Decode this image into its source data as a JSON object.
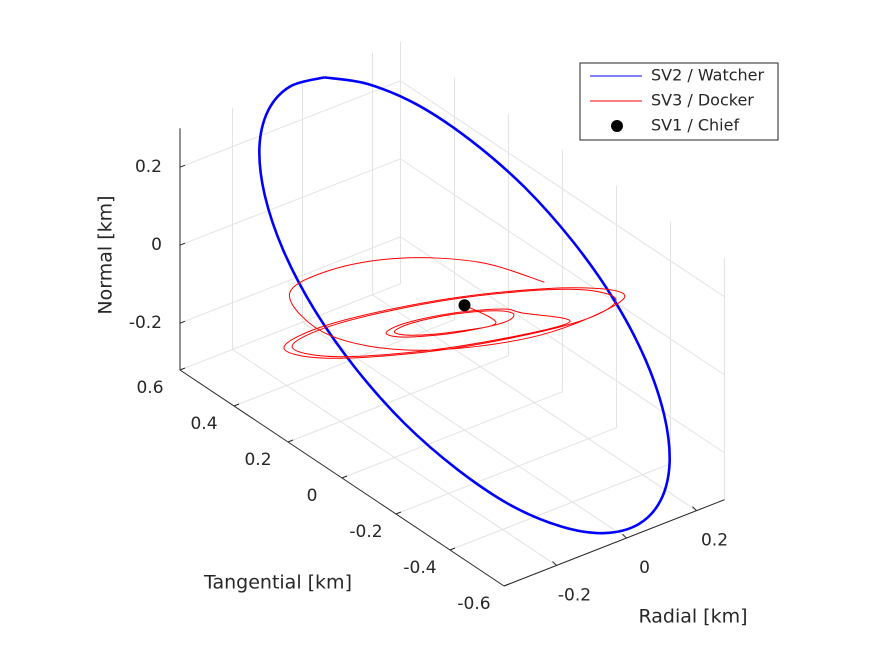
{
  "chart_data": {
    "type": "line3d",
    "xlabel": "Radial [km]",
    "ylabel": "Tangential [km]",
    "zlabel": "Normal [km]",
    "xlim": [
      -0.35,
      0.28
    ],
    "ylim": [
      -0.6,
      0.6
    ],
    "zlim": [
      -0.32,
      0.3
    ],
    "xticks": [
      -0.2,
      0,
      0.2
    ],
    "yticks": [
      -0.6,
      -0.4,
      -0.2,
      0,
      0.2,
      0.4,
      0.6
    ],
    "zticks": [
      -0.2,
      0,
      0.2
    ],
    "grid": true,
    "legend_location": "northeast",
    "series": [
      {
        "name": "SV2 / Watcher",
        "color": "#0000ff",
        "mode": "line",
        "x": [
          0.047,
          0.118,
          0.183,
          0.233,
          0.269,
          0.285,
          0.283,
          0.261,
          0.221,
          0.167,
          0.101,
          0.028,
          -0.047,
          -0.118,
          -0.183,
          -0.233,
          -0.269,
          -0.285,
          -0.283,
          -0.261,
          -0.221,
          -0.167,
          -0.101,
          -0.028,
          0.047
        ],
        "y": [
          0.58,
          0.511,
          0.408,
          0.277,
          0.127,
          -0.032,
          -0.188,
          -0.332,
          -0.453,
          -0.543,
          -0.596,
          -0.609,
          -0.58,
          -0.511,
          -0.408,
          -0.277,
          -0.127,
          0.032,
          0.188,
          0.332,
          0.453,
          0.543,
          0.596,
          0.609,
          0.58
        ],
        "z": [
          0.3,
          0.29,
          0.26,
          0.212,
          0.15,
          0.078,
          0,
          -0.078,
          -0.15,
          -0.212,
          -0.26,
          -0.29,
          -0.3,
          -0.29,
          -0.26,
          -0.212,
          -0.15,
          -0.078,
          0,
          0.078,
          0.15,
          0.212,
          0.26,
          0.29,
          0.3
        ]
      },
      {
        "name": "SV3 / Docker",
        "color": "#ff0000",
        "mode": "line",
        "x": [
          0.206,
          0.143,
          0.01,
          -0.149,
          -0.288,
          -0.324,
          -0.203,
          0.054,
          0.22,
          0.194,
          0.038,
          -0.159,
          -0.28,
          -0.254,
          -0.098,
          0.099,
          0.208,
          0.183,
          0.035,
          -0.153,
          -0.268,
          -0.243,
          -0.095,
          0.093,
          0.07,
          0.06,
          -0.003,
          -0.082,
          -0.13,
          -0.12,
          -0.057,
          0.022,
          0.058,
          0.048,
          -0.006,
          -0.075,
          -0.118,
          -0.108,
          -0.054,
          0.015,
          0
        ],
        "y": [
          -0.029,
          0.13,
          0.254,
          0.307,
          0.275,
          0.08,
          -0.096,
          -0.208,
          -0.306,
          -0.154,
          0.088,
          0.278,
          0.306,
          0.154,
          -0.088,
          -0.278,
          -0.291,
          -0.146,
          0.084,
          0.264,
          0.291,
          0.146,
          -0.084,
          -0.264,
          -0.122,
          -0.062,
          0.035,
          0.111,
          0.122,
          0.062,
          -0.035,
          -0.111,
          -0.107,
          -0.054,
          0.031,
          0.097,
          0.107,
          0.054,
          -0.031,
          -0.097,
          0
        ],
        "z": [
          0,
          0,
          0,
          0,
          0,
          0,
          0,
          0,
          0.082,
          0.048,
          -0.035,
          -0.118,
          -0.152,
          -0.118,
          -0.035,
          0.048,
          0.076,
          0.044,
          -0.035,
          -0.114,
          -0.146,
          -0.114,
          -0.035,
          0.044,
          0.012,
          -0.002,
          -0.035,
          -0.068,
          -0.082,
          -0.068,
          -0.035,
          -0.002,
          0.006,
          -0.006,
          -0.035,
          -0.064,
          -0.076,
          -0.064,
          -0.035,
          -0.006,
          0
        ]
      },
      {
        "name": "SV1 / Chief",
        "color": "#000000",
        "mode": "marker",
        "x": [
          0
        ],
        "y": [
          0
        ],
        "z": [
          0
        ]
      }
    ]
  }
}
